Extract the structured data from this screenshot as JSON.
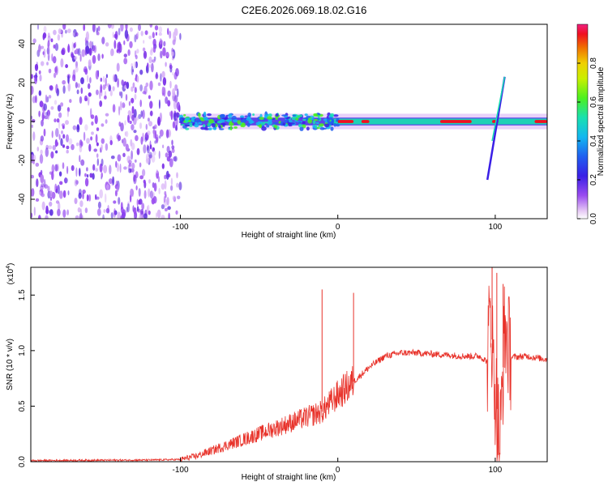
{
  "title": "C2E6.2026.069.18.02.G16",
  "chart_data": [
    {
      "type": "heatmap",
      "title": "C2E6.2026.069.18.02.G16",
      "xlabel": "Height of straight line (km)",
      "ylabel": "Frequency (Hz)",
      "xlim": [
        -195,
        133
      ],
      "ylim": [
        -50,
        50
      ],
      "xticks": [
        "-100",
        "0",
        "100"
      ],
      "yticks": [
        "-40",
        "-20",
        "0",
        "20",
        "40"
      ],
      "colorbar": {
        "label": "Normalized spectral amplitude",
        "range": [
          0.0,
          1.0
        ],
        "ticks": [
          "0.0",
          "0.2",
          "0.4",
          "0.6",
          "0.8"
        ]
      },
      "features": {
        "noise_region_x": [
          -195,
          -100
        ],
        "ridge_frequency_hz": 0,
        "chirp_x": [
          95,
          106
        ],
        "chirp_frequency_hz": [
          -30,
          23
        ]
      }
    },
    {
      "type": "line",
      "xlabel": "Height of straight line (km)",
      "ylabel": "SNR (10 * v/v)",
      "scale_label": "(x10",
      "scale_exponent": "4",
      "xlim": [
        -195,
        133
      ],
      "ylim": [
        0.0,
        1.75
      ],
      "xticks": [
        "-100",
        "0",
        "100"
      ],
      "yticks": [
        "0.0",
        "0.5",
        "1.0",
        "1.5"
      ],
      "series": [
        {
          "name": "SNR",
          "color": "#e8322a",
          "x": [
            -195,
            -120,
            -100,
            -90,
            -80,
            -70,
            -60,
            -50,
            -40,
            -30,
            -20,
            -10,
            0,
            10,
            20,
            30,
            40,
            50,
            60,
            70,
            80,
            90,
            95,
            97,
            99,
            103,
            106,
            110,
            120,
            133
          ],
          "values": [
            0.01,
            0.015,
            0.02,
            0.05,
            0.1,
            0.15,
            0.2,
            0.25,
            0.3,
            0.35,
            0.4,
            0.45,
            0.6,
            0.72,
            0.85,
            0.95,
            0.98,
            0.98,
            0.97,
            0.96,
            0.95,
            0.95,
            0.9,
            1.4,
            0.8,
            0.15,
            1.2,
            0.94,
            0.95,
            0.92
          ]
        }
      ],
      "peaks_x": [
        -10,
        10,
        98,
        101,
        105
      ],
      "peaks_y": [
        1.55,
        1.52,
        1.75,
        1.7,
        1.6
      ]
    }
  ]
}
